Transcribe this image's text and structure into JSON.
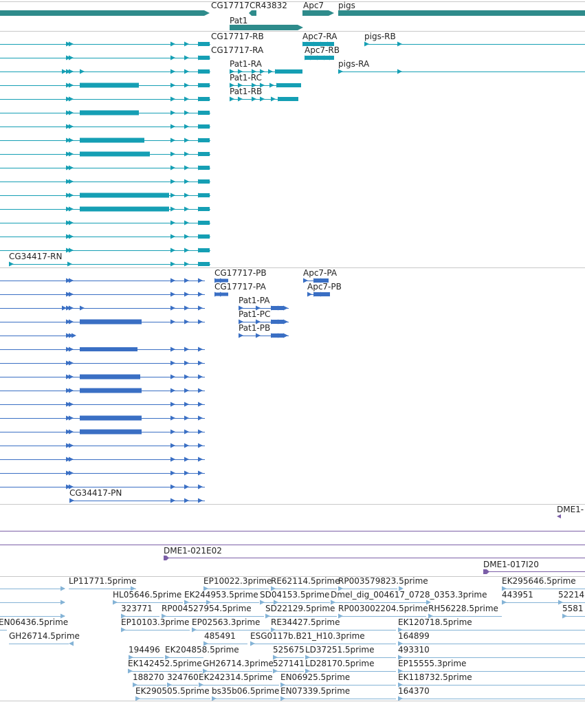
{
  "colors": {
    "gene": "#2e8b8b",
    "rna": "#159fb4",
    "protein": "#3a6fc4",
    "clone": "#7b5ea7",
    "est": "#84b3d6",
    "divider": "#c8c8c8"
  },
  "gene_track": {
    "labels": [
      "CG17717",
      "CR43832",
      "Apc7",
      "pigs",
      "Pat1"
    ]
  },
  "transcript_track": {
    "labels": [
      "CG17717-RB",
      "Apc7-RA",
      "pigs-RB",
      "CG17717-RA",
      "Apc7-RB",
      "Pat1-RA",
      "pigs-RA",
      "Pat1-RC",
      "Pat1-RB",
      "CG34417-RN"
    ]
  },
  "protein_track": {
    "labels": [
      "CG17717-PB",
      "Apc7-PA",
      "CG17717-PA",
      "Apc7-PB",
      "Pat1-PA",
      "Pat1-PC",
      "Pat1-PB",
      "CG34417-PN"
    ]
  },
  "clone_track": {
    "labels": [
      "DME1-",
      "DME1-021E02",
      "DME1-017I20"
    ]
  },
  "est_track": {
    "labels": [
      "LP11771.5prime",
      "EP10022.3prime",
      "RE62114.5prime",
      "RP003579823.5prime",
      "EK295646.5prime",
      "HL05646.5prime",
      "EK244953.5prime",
      "SD04153.5prime",
      "Dmel_dig_004617_0728_0353.3prime",
      "443951",
      "52214",
      "323771",
      "RP004527954.5prime",
      "SD22129.5prime",
      "RP003002204.5prime",
      "RH56228.5prime",
      "5581",
      "EN06436.5prime",
      "EP10103.3prime",
      "EP02563.3prime",
      "RE34427.5prime",
      "EK120718.5prime",
      "GH26714.5prime",
      "485491",
      "ESG0117b.B21_H10.3prime",
      "164899",
      "194496",
      "EK204858.5prime",
      "525675",
      "LD37251.5prime",
      "493310",
      "EK142452.5prime",
      "GH26714.3prime",
      "527141",
      "LD28170.5prime",
      "EP15555.3prime",
      "188270",
      "324760",
      "EK242314.5prime",
      "EN06925.5prime",
      "EK118732.5prime",
      "EK290505.5prime",
      "bs35b06.5prime",
      "EN07339.5prime",
      "164370"
    ]
  }
}
